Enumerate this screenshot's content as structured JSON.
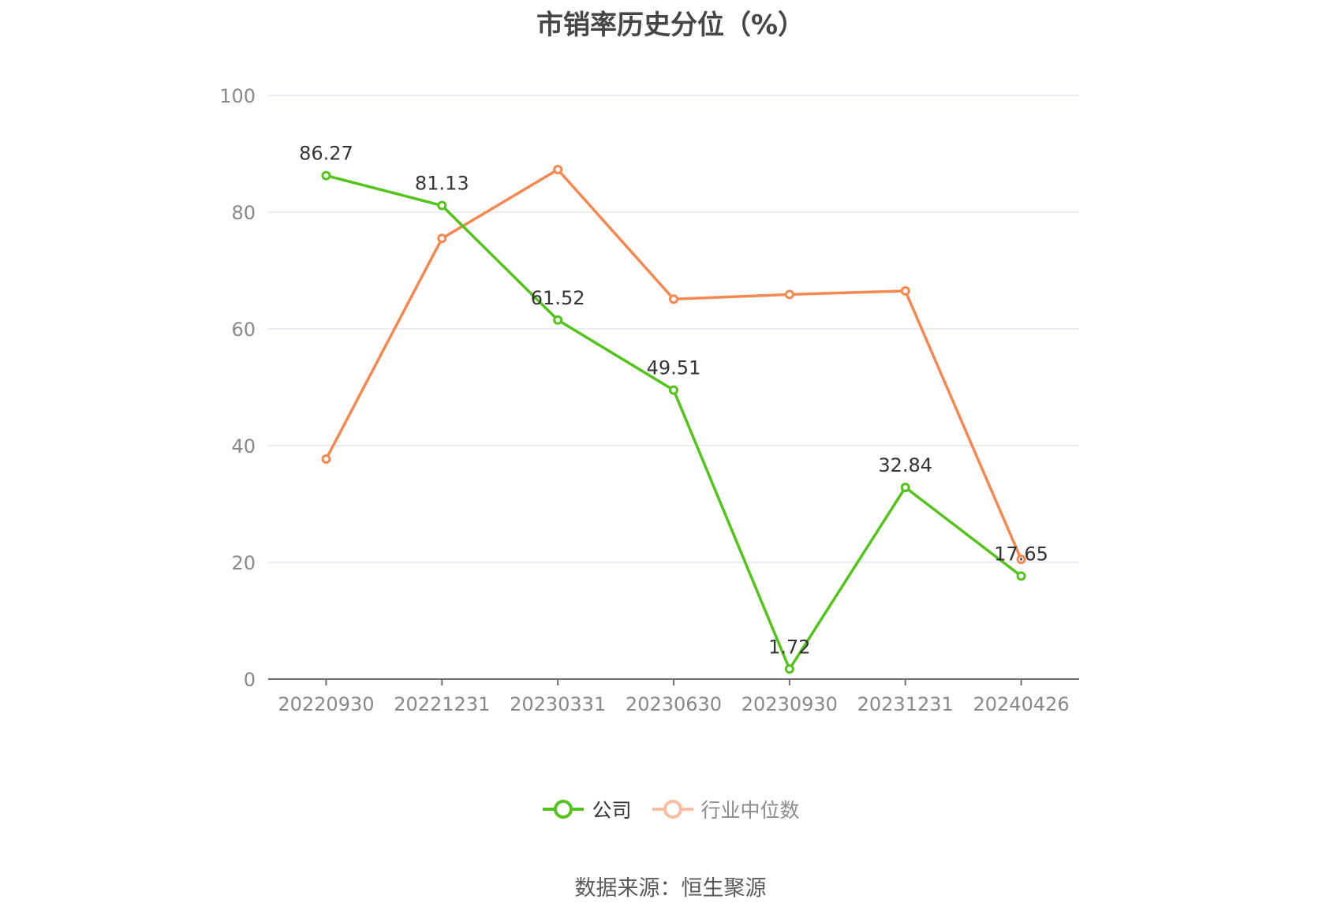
{
  "chart_data": {
    "type": "line",
    "title": "市销率历史分位（%）",
    "categories": [
      "20220930",
      "20221231",
      "20230331",
      "20230630",
      "20230930",
      "20231231",
      "20240426"
    ],
    "ylim": [
      0,
      100
    ],
    "y_ticks": [
      "0",
      "20",
      "40",
      "60",
      "80",
      "100"
    ],
    "grid": true,
    "legend_position": "bottom-center",
    "series": [
      {
        "name": "公司",
        "color": "#52c41a",
        "values": [
          86.27,
          81.13,
          61.52,
          49.51,
          1.72,
          32.84,
          17.65
        ],
        "labels": [
          "86.27",
          "81.13",
          "61.52",
          "49.51",
          "1.72",
          "32.84",
          "17.65"
        ]
      },
      {
        "name": "行业中位数",
        "color": "#f5874f",
        "values": [
          37.7,
          75.5,
          87.3,
          65.1,
          65.9,
          66.5,
          20.5
        ]
      }
    ],
    "source": "数据来源：恒生聚源"
  }
}
